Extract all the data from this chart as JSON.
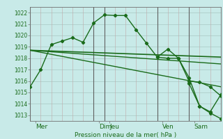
{
  "background_color": "#c8eae8",
  "plot_bg_color": "#c8eae8",
  "line_color": "#1a6b1a",
  "ylabel_text": "Pression niveau de la mer( hPa )",
  "ylim": [
    1012.5,
    1022.5
  ],
  "ytick_min": 1013,
  "ytick_max": 1022,
  "xlim": [
    0,
    18
  ],
  "day_positions": [
    0.5,
    6.5,
    7.5,
    12.5,
    15.5
  ],
  "day_labels": [
    "Mer",
    "Dim",
    "Jeu",
    "Ven",
    "Sam"
  ],
  "vline_positions": [
    0,
    6,
    7,
    12,
    15,
    18
  ],
  "series1_x": [
    0,
    1,
    2,
    3,
    4,
    5,
    6,
    7,
    8,
    9,
    10,
    11,
    12,
    13,
    14,
    15,
    16,
    17,
    18
  ],
  "series1_y": [
    1015.5,
    1017.0,
    1019.2,
    1019.5,
    1019.8,
    1019.4,
    1021.1,
    1021.8,
    1021.75,
    1021.75,
    1020.5,
    1019.3,
    1018.1,
    1018.0,
    1018.0,
    1016.0,
    1015.9,
    1015.5,
    1014.7
  ],
  "series2_x": [
    0,
    18
  ],
  "series2_y": [
    1018.7,
    1018.1
  ],
  "series3_x": [
    0,
    18
  ],
  "series3_y": [
    1018.7,
    1017.5
  ],
  "series4_x": [
    0,
    18
  ],
  "series4_y": [
    1018.7,
    1015.5
  ],
  "series5_x": [
    12,
    13,
    14,
    15,
    16,
    17,
    18
  ],
  "series5_y": [
    1018.1,
    1018.8,
    1018.0,
    1016.3,
    1013.8,
    1013.2,
    1012.7
  ],
  "series6_x": [
    15,
    16,
    17,
    18
  ],
  "series6_y": [
    1015.8,
    1013.8,
    1013.3,
    1014.8
  ]
}
